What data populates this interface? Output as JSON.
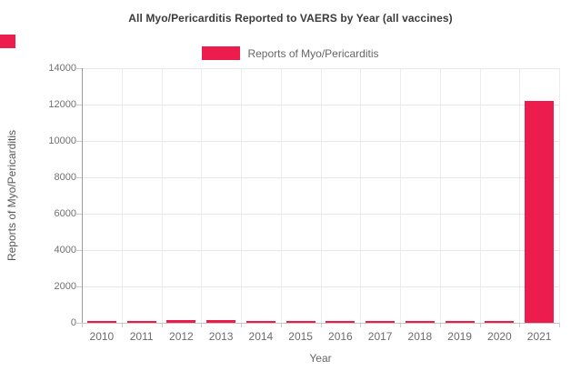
{
  "title": "All Myo/Pericarditis Reported to VAERS by Year (all vaccines)",
  "legend": {
    "label": "Reports of Myo/Pericarditis",
    "swatch_color": "#ec1c4c"
  },
  "axes": {
    "x_label": "Year",
    "y_label": "Reports of Myo/Pericarditis"
  },
  "corner_marker": {
    "color": "#ec1c4c"
  },
  "chart_data": {
    "type": "bar",
    "title": "All Myo/Pericarditis Reported to VAERS by Year (all vaccines)",
    "categories": [
      "2010",
      "2011",
      "2012",
      "2013",
      "2014",
      "2015",
      "2016",
      "2017",
      "2018",
      "2019",
      "2020",
      "2021"
    ],
    "series": [
      {
        "name": "Reports of Myo/Pericarditis",
        "values": [
          70,
          80,
          140,
          130,
          80,
          50,
          55,
          70,
          120,
          70,
          65,
          12200
        ]
      }
    ],
    "xlabel": "Year",
    "ylabel": "Reports of Myo/Pericarditis",
    "ylim": [
      0,
      14000
    ],
    "yticks": [
      0,
      2000,
      4000,
      6000,
      8000,
      10000,
      12000,
      14000
    ],
    "grid": true,
    "legend_position": "top-center",
    "bar_color": "#ec1c4c"
  }
}
